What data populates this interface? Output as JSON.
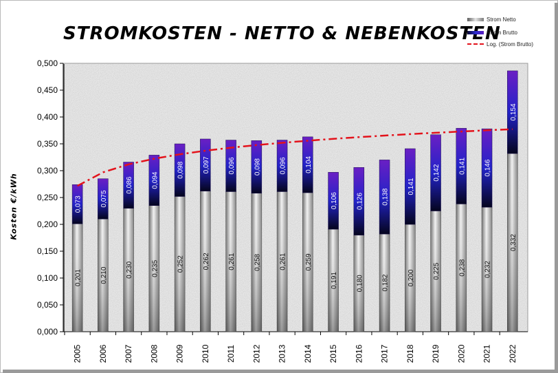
{
  "chart_data": {
    "type": "bar",
    "stacked": true,
    "title": "STROMKOSTEN  - NETTO & NEBENKOSTEN",
    "ylabel": "Kosten  €/kWh",
    "xlabel": "",
    "ylim": [
      0,
      0.5
    ],
    "yticks": [
      "0,000",
      "0,050",
      "0,100",
      "0,150",
      "0,200",
      "0,250",
      "0,300",
      "0,350",
      "0,400",
      "0,450",
      "0,500"
    ],
    "grid": false,
    "legend_position": "top-right",
    "categories": [
      "2005",
      "2006",
      "2007",
      "2008",
      "2009",
      "2010",
      "2011",
      "2012",
      "2013",
      "2014",
      "2015",
      "2016",
      "2017",
      "2018",
      "2019",
      "2020",
      "2021",
      "2022"
    ],
    "series": [
      {
        "name": "Strom Netto",
        "values": [
          0.201,
          0.21,
          0.23,
          0.235,
          0.252,
          0.262,
          0.261,
          0.258,
          0.261,
          0.259,
          0.191,
          0.18,
          0.182,
          0.2,
          0.225,
          0.238,
          0.232,
          0.332
        ],
        "labels": [
          "0,201",
          "0,210",
          "0,230",
          "0,235",
          "0,252",
          "0,262",
          "0,261",
          "0,258",
          "0,261",
          "0,259",
          "0,191",
          "0,180",
          "0,182",
          "0,200",
          "0,225",
          "0,238",
          "0,232",
          "0,332"
        ]
      },
      {
        "name": "Strom Brutto",
        "values": [
          0.073,
          0.075,
          0.086,
          0.094,
          0.098,
          0.097,
          0.096,
          0.098,
          0.096,
          0.104,
          0.106,
          0.126,
          0.138,
          0.141,
          0.142,
          0.141,
          0.146,
          0.154
        ],
        "labels": [
          "0,073",
          "0,075",
          "0,086",
          "0,094",
          "0,098",
          "0,097",
          "0,096",
          "0,098",
          "0,096",
          "0,104",
          "0,106",
          "0,126",
          "0,138",
          "0,141",
          "0,142",
          "0,141",
          "0,146",
          "0,154"
        ]
      }
    ],
    "trendline": {
      "name": "Log. (Strom Brutto)",
      "type": "logarithmic",
      "color": "#e3121b"
    }
  }
}
